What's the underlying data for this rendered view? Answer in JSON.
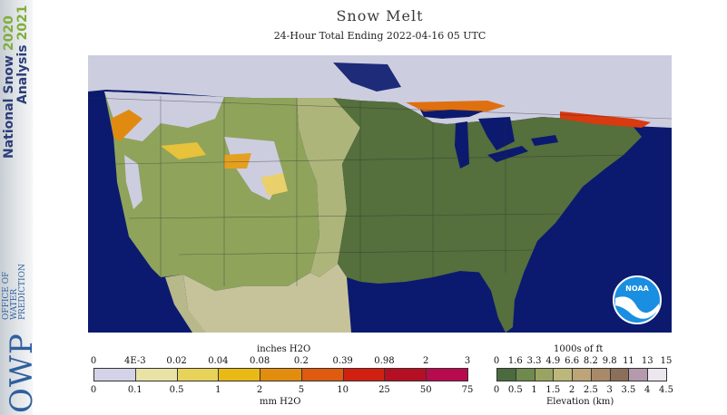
{
  "sidebar": {
    "title_line1": "National Snow",
    "year_line1": "2020",
    "title_line2": "Analysis",
    "year_line2": "2021",
    "org_abbrev": "OWP",
    "org_name": [
      "OFFICE OF",
      "WATER",
      "PREDICTION"
    ]
  },
  "header": {
    "title": "Snow Melt",
    "subtitle": "24-Hour Total Ending 2022-04-16 05 UTC"
  },
  "logo": {
    "text": "NOAA"
  },
  "legend_melt": {
    "top_label": "inches H2O",
    "top_ticks": [
      "0",
      "4E-3",
      "0.02",
      "0.04",
      "0.08",
      "0.2",
      "0.39",
      "0.98",
      "2",
      "3"
    ],
    "bottom_ticks": [
      "0",
      "0.1",
      "0.5",
      "1",
      "2",
      "5",
      "10",
      "25",
      "50",
      "75"
    ],
    "bottom_label": "mm H2O",
    "colors": [
      "#d4d2e6",
      "#e8e2a6",
      "#e7d35a",
      "#e9ba15",
      "#e38d0f",
      "#de5b10",
      "#d22010",
      "#b50f23",
      "#b80a4e"
    ]
  },
  "legend_elev": {
    "top_label": "1000s of ft",
    "top_ticks": [
      "0",
      "1.6",
      "3.3",
      "4.9",
      "6.6",
      "8.2",
      "9.8",
      "11",
      "13",
      "15"
    ],
    "bottom_ticks": [
      "0",
      "0.5",
      "1",
      "1.5",
      "2",
      "2.5",
      "3",
      "3.5",
      "4",
      "4.5"
    ],
    "bottom_label": "Elevation (km)",
    "colors": [
      "#4b6b3f",
      "#708a4e",
      "#99a463",
      "#bcb77a",
      "#bda577",
      "#a88a68",
      "#8c6f5a",
      "#b49aac",
      "#ece6ee"
    ]
  }
}
